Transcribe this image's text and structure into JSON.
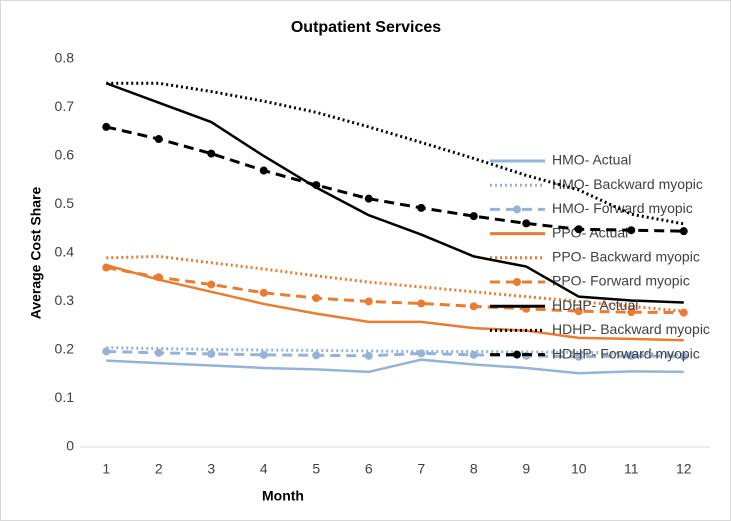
{
  "chart_data": {
    "type": "line",
    "title": "Outpatient Services",
    "xlabel": "Month",
    "ylabel": "Average Cost Share",
    "x": [
      1,
      2,
      3,
      4,
      5,
      6,
      7,
      8,
      9,
      10,
      11,
      12
    ],
    "xlim": [
      0.5,
      12.5
    ],
    "xticks": [
      1,
      2,
      3,
      4,
      5,
      6,
      7,
      8,
      9,
      10,
      11,
      12
    ],
    "ylim": [
      0,
      0.8
    ],
    "yticks": [
      0,
      0.1,
      0.2,
      0.3,
      0.4,
      0.5,
      0.6,
      0.7,
      0.8
    ],
    "grid": false,
    "legend": "right",
    "series": [
      {
        "name": "HMO- Actual",
        "color": "#95b3d7",
        "line_style": "solid",
        "marker": false,
        "values": [
          0.178,
          0.173,
          0.168,
          0.163,
          0.16,
          0.155,
          0.18,
          0.17,
          0.163,
          0.152,
          0.156,
          0.155
        ]
      },
      {
        "name": "HMO- Backward myopic",
        "color": "#95b3d7",
        "line_style": "dotted",
        "marker": false,
        "values": [
          0.205,
          0.203,
          0.201,
          0.2,
          0.199,
          0.198,
          0.197,
          0.197,
          0.196,
          0.195,
          0.193,
          0.191
        ]
      },
      {
        "name": "HMO- Forward myopic",
        "color": "#95b3d7",
        "line_style": "dashed",
        "marker": true,
        "values": [
          0.197,
          0.194,
          0.192,
          0.19,
          0.189,
          0.188,
          0.193,
          0.19,
          0.188,
          0.186,
          0.188,
          0.187
        ]
      },
      {
        "name": "PPO- Actual",
        "color": "#e97c30",
        "line_style": "solid",
        "marker": false,
        "values": [
          0.375,
          0.345,
          0.32,
          0.295,
          0.275,
          0.258,
          0.258,
          0.245,
          0.24,
          0.225,
          0.223,
          0.22
        ]
      },
      {
        "name": "PPO- Backward myopic",
        "color": "#e97c30",
        "line_style": "dotted",
        "marker": false,
        "values": [
          0.39,
          0.393,
          0.38,
          0.367,
          0.353,
          0.34,
          0.33,
          0.32,
          0.31,
          0.3,
          0.29,
          0.28
        ]
      },
      {
        "name": "PPO- Forward myopic",
        "color": "#e97c30",
        "line_style": "dashed",
        "marker": true,
        "values": [
          0.37,
          0.35,
          0.335,
          0.318,
          0.307,
          0.3,
          0.296,
          0.29,
          0.285,
          0.28,
          0.278,
          0.277
        ]
      },
      {
        "name": "HDHP- Actual",
        "color": "#000000",
        "line_style": "solid",
        "marker": false,
        "values": [
          0.75,
          0.71,
          0.67,
          0.6,
          0.535,
          0.478,
          0.438,
          0.393,
          0.372,
          0.31,
          0.302,
          0.298
        ]
      },
      {
        "name": "HDHP- Backward myopic",
        "color": "#000000",
        "line_style": "dotted",
        "marker": false,
        "values": [
          0.75,
          0.75,
          0.733,
          0.713,
          0.69,
          0.66,
          0.628,
          0.595,
          0.56,
          0.53,
          0.48,
          0.46
        ]
      },
      {
        "name": "HDHP- Forward myopic",
        "color": "#000000",
        "line_style": "dashed",
        "marker": true,
        "values": [
          0.66,
          0.635,
          0.605,
          0.57,
          0.54,
          0.512,
          0.493,
          0.476,
          0.461,
          0.449,
          0.447,
          0.445
        ]
      }
    ]
  }
}
